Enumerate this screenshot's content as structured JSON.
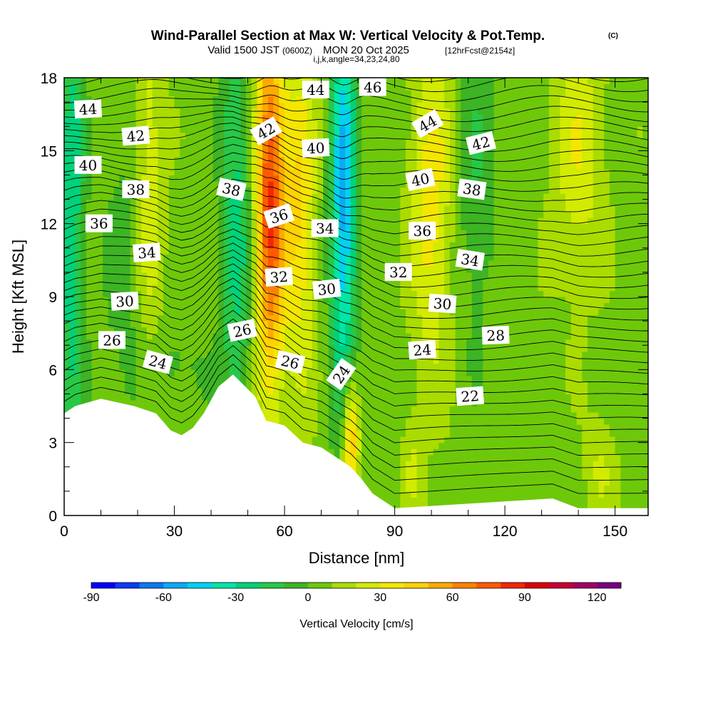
{
  "chart_data": {
    "type": "heatmap",
    "title": "Wind-Parallel Section at Max W: Vertical Velocity & Pot.Temp.",
    "copyright_mark": "(C)",
    "subtitle": {
      "valid_prefix": "Valid 1500 JST",
      "utc_time": "(0600Z)",
      "valid_date": "MON 20 Oct 2025",
      "forecast": "[12hrFcst@2154z]"
    },
    "section_params": "i,j,k,angle=34,23,24,80",
    "xlabel": "Distance [nm]",
    "ylabel": "Height [Kft MSL]",
    "xlim": [
      0,
      159
    ],
    "ylim": [
      0,
      18
    ],
    "x_ticks": [
      0,
      30,
      60,
      90,
      120,
      150
    ],
    "x_tick_labels": [
      "0",
      "30",
      "60",
      "90",
      "120",
      "150"
    ],
    "y_ticks": [
      0,
      3,
      6,
      9,
      12,
      15,
      18
    ],
    "y_tick_labels": [
      "0",
      "3",
      "6",
      "9",
      "12",
      "15",
      "18"
    ],
    "colorbar": {
      "title": "Vertical Velocity [cm/s]",
      "min": -90,
      "max": 130,
      "step": 10,
      "tick_values": [
        -90,
        -60,
        -30,
        0,
        30,
        60,
        90,
        120
      ],
      "tick_labels": [
        "-90",
        "-60",
        "-30",
        "0",
        "30",
        "60",
        "90",
        "120"
      ],
      "colors": [
        "#0000ff",
        "#0a3cf5",
        "#0a78f0",
        "#0aaaf5",
        "#00d2f0",
        "#00e6aa",
        "#00d278",
        "#28c846",
        "#3cb424",
        "#6ec80a",
        "#aadc00",
        "#d2eb00",
        "#f5e600",
        "#ffd200",
        "#ffaa00",
        "#ff8200",
        "#ff5a00",
        "#f02800",
        "#dc0000",
        "#c80032",
        "#a00064",
        "#780082"
      ]
    },
    "contour_variable": "Potential temperature",
    "contour_labels": [
      {
        "text": "44",
        "x": 6.5,
        "y": 16.7,
        "angle": -3
      },
      {
        "text": "42",
        "x": 19.5,
        "y": 15.6,
        "angle": -5
      },
      {
        "text": "40",
        "x": 6.5,
        "y": 14.4,
        "angle": 0
      },
      {
        "text": "38",
        "x": 19.5,
        "y": 13.4,
        "angle": 0
      },
      {
        "text": "36",
        "x": 9.5,
        "y": 12.0,
        "angle": 0
      },
      {
        "text": "34",
        "x": 22.5,
        "y": 10.8,
        "angle": -4
      },
      {
        "text": "30",
        "x": 16.5,
        "y": 8.8,
        "angle": -3
      },
      {
        "text": "26",
        "x": 13.0,
        "y": 7.2,
        "angle": 0
      },
      {
        "text": "24",
        "x": 25.5,
        "y": 6.3,
        "angle": 15
      },
      {
        "text": "38",
        "x": 45.5,
        "y": 13.4,
        "angle": 13
      },
      {
        "text": "42",
        "x": 55.0,
        "y": 15.8,
        "angle": -30
      },
      {
        "text": "36",
        "x": 58.5,
        "y": 12.3,
        "angle": -18
      },
      {
        "text": "32",
        "x": 58.5,
        "y": 9.8,
        "angle": -4
      },
      {
        "text": "26",
        "x": 48.5,
        "y": 7.6,
        "angle": -12
      },
      {
        "text": "26",
        "x": 61.5,
        "y": 6.3,
        "angle": 14
      },
      {
        "text": "44",
        "x": 68.5,
        "y": 17.5,
        "angle": 0
      },
      {
        "text": "46",
        "x": 84.0,
        "y": 17.6,
        "angle": 0
      },
      {
        "text": "40",
        "x": 68.5,
        "y": 15.1,
        "angle": -3
      },
      {
        "text": "34",
        "x": 71.0,
        "y": 11.8,
        "angle": 0
      },
      {
        "text": "30",
        "x": 71.5,
        "y": 9.3,
        "angle": -6
      },
      {
        "text": "24",
        "x": 75.5,
        "y": 5.8,
        "angle": -55
      },
      {
        "text": "44",
        "x": 99.0,
        "y": 16.1,
        "angle": -30
      },
      {
        "text": "42",
        "x": 113.5,
        "y": 15.3,
        "angle": -14
      },
      {
        "text": "40",
        "x": 97.0,
        "y": 13.8,
        "angle": -12
      },
      {
        "text": "38",
        "x": 111.0,
        "y": 13.4,
        "angle": 8
      },
      {
        "text": "36",
        "x": 97.5,
        "y": 11.7,
        "angle": 0
      },
      {
        "text": "34",
        "x": 110.5,
        "y": 10.5,
        "angle": 9
      },
      {
        "text": "32",
        "x": 91.0,
        "y": 10.0,
        "angle": 0
      },
      {
        "text": "30",
        "x": 103.0,
        "y": 8.7,
        "angle": 4
      },
      {
        "text": "28",
        "x": 117.5,
        "y": 7.4,
        "angle": -2
      },
      {
        "text": "24",
        "x": 97.5,
        "y": 6.8,
        "angle": -4
      },
      {
        "text": "22",
        "x": 110.5,
        "y": 4.9,
        "angle": -4
      }
    ],
    "terrain_profile": [
      [
        0,
        4.2
      ],
      [
        3,
        4.5
      ],
      [
        10,
        4.8
      ],
      [
        19,
        4.5
      ],
      [
        25,
        4.2
      ],
      [
        29,
        3.5
      ],
      [
        32,
        3.3
      ],
      [
        35,
        3.6
      ],
      [
        38,
        4.2
      ],
      [
        42,
        5.3
      ],
      [
        46,
        5.8
      ],
      [
        52,
        4.9
      ],
      [
        55,
        3.9
      ],
      [
        60,
        3.7
      ],
      [
        65,
        3.0
      ],
      [
        70,
        2.8
      ],
      [
        75,
        2.3
      ],
      [
        78,
        2.0
      ],
      [
        81,
        1.5
      ],
      [
        84,
        0.9
      ],
      [
        87,
        0.6
      ],
      [
        90,
        0.3
      ],
      [
        133,
        0.7
      ],
      [
        140,
        0.3
      ],
      [
        159,
        0.3
      ]
    ],
    "w_features": [
      {
        "x": 2,
        "z": 12,
        "sx": 2.5,
        "sz": 7,
        "w": -35
      },
      {
        "x": 17,
        "z": 10,
        "sx": 4,
        "sz": 5,
        "w": -12
      },
      {
        "x": 23,
        "z": 14,
        "sx": 3,
        "sz": 6,
        "w": 22
      },
      {
        "x": 47,
        "z": 12,
        "sx": 3,
        "sz": 7,
        "w": -30
      },
      {
        "x": 56,
        "z": 13,
        "sx": 2.8,
        "sz": 5.5,
        "w": 75
      },
      {
        "x": 64,
        "z": 12.5,
        "sx": 3.2,
        "sz": 5,
        "w": 35
      },
      {
        "x": 76,
        "z": 13,
        "sx": 2.5,
        "sz": 6,
        "w": -60
      },
      {
        "x": 78,
        "z": 3.2,
        "sx": 1.6,
        "sz": 1.8,
        "w": 50
      },
      {
        "x": 100,
        "z": 13,
        "sx": 4,
        "sz": 5,
        "w": 30
      },
      {
        "x": 112,
        "z": 14,
        "sx": 4,
        "sz": 5,
        "w": -15
      },
      {
        "x": 140,
        "z": 15,
        "sx": 5,
        "sz": 4,
        "w": 22
      },
      {
        "x": 95,
        "z": 2,
        "sx": 2,
        "sz": 1.5,
        "w": 15
      },
      {
        "x": 146,
        "z": 2,
        "sx": 3,
        "sz": 1.5,
        "w": 15
      },
      {
        "x": 30,
        "z": 6,
        "sx": 6,
        "sz": 1.5,
        "w": -10
      }
    ]
  }
}
